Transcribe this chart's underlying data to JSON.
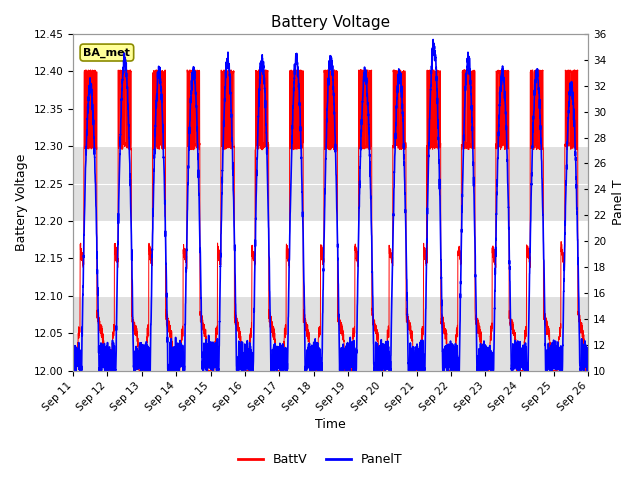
{
  "title": "Battery Voltage",
  "xlabel": "Time",
  "ylabel_left": "Battery Voltage",
  "ylabel_right": "Panel T",
  "ylim_left": [
    12.0,
    12.45
  ],
  "ylim_right": [
    10,
    36
  ],
  "yticks_left": [
    12.0,
    12.05,
    12.1,
    12.15,
    12.2,
    12.25,
    12.3,
    12.35,
    12.4,
    12.45
  ],
  "yticks_right": [
    10,
    12,
    14,
    16,
    18,
    20,
    22,
    24,
    26,
    28,
    30,
    32,
    34,
    36
  ],
  "xtick_labels": [
    "Sep 11",
    "Sep 12",
    "Sep 13",
    "Sep 14",
    "Sep 15",
    "Sep 16",
    "Sep 17",
    "Sep 18",
    "Sep 19",
    "Sep 20",
    "Sep 21",
    "Sep 22",
    "Sep 23",
    "Sep 24",
    "Sep 25",
    "Sep 26"
  ],
  "batt_color": "#FF0000",
  "panel_color": "#0000FF",
  "background_color": "#FFFFFF",
  "plot_bg_light": "#E8E8E8",
  "plot_bg_dark": "#D0D0D0",
  "grid_color": "#FFFFFF",
  "legend_label_batt": "BattV",
  "legend_label_panel": "PanelT",
  "station_label": "BA_met",
  "station_label_bg": "#FFFF99",
  "station_label_border": "#8B8B00",
  "n_days": 15,
  "batt_high": 12.4,
  "batt_mid": 12.3,
  "batt_low": 12.2,
  "panel_night": 10.5,
  "panel_day_peak": 33.0
}
